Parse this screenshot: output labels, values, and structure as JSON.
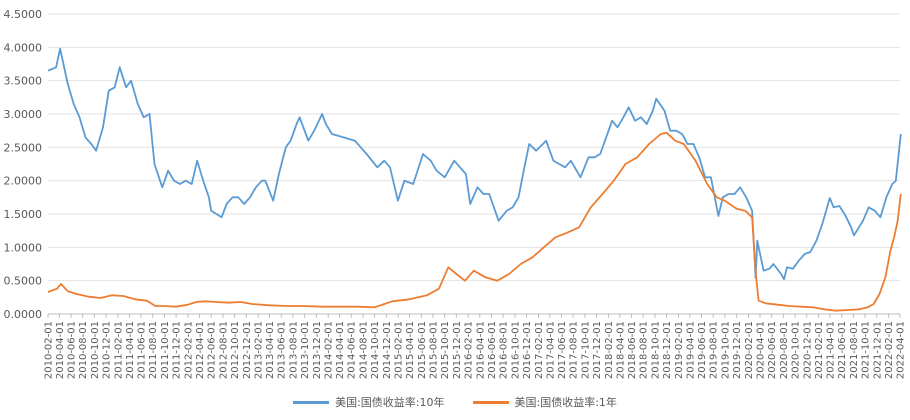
{
  "chart_data": {
    "type": "line",
    "title": "",
    "xlabel": "",
    "ylabel": "",
    "ylim": [
      0,
      4.5
    ],
    "yticks": [
      "0.0000",
      "0.5000",
      "1.0000",
      "1.5000",
      "2.0000",
      "2.5000",
      "3.0000",
      "3.5000",
      "4.0000",
      "4.5000"
    ],
    "xlim": [
      "2010-02-01",
      "2022-04-01"
    ],
    "xticks": [
      "2010-02-01",
      "2010-04-01",
      "2010-06-01",
      "2010-08-01",
      "2010-10-01",
      "2010-12-01",
      "2011-02-01",
      "2011-04-01",
      "2011-06-01",
      "2011-08-01",
      "2011-10-01",
      "2011-12-01",
      "2012-02-01",
      "2012-04-01",
      "2012-06-01",
      "2012-08-01",
      "2012-10-01",
      "2012-12-01",
      "2013-02-01",
      "2013-04-01",
      "2013-06-01",
      "2013-08-01",
      "2013-10-01",
      "2013-12-01",
      "2014-02-01",
      "2014-04-01",
      "2014-06-01",
      "2014-08-01",
      "2014-10-01",
      "2014-12-01",
      "2015-02-01",
      "2015-04-01",
      "2015-06-01",
      "2015-08-01",
      "2015-10-01",
      "2015-12-01",
      "2016-02-01",
      "2016-04-01",
      "2016-06-01",
      "2016-08-01",
      "2016-10-01",
      "2016-12-01",
      "2017-02-01",
      "2017-04-01",
      "2017-06-01",
      "2017-08-01",
      "2017-10-01",
      "2017-12-01",
      "2018-02-01",
      "2018-04-01",
      "2018-06-01",
      "2018-08-01",
      "2018-10-01",
      "2018-12-01",
      "2019-02-01",
      "2019-04-01",
      "2019-06-01",
      "2019-08-01",
      "2019-10-01",
      "2019-12-01",
      "2020-02-01",
      "2020-04-01",
      "2020-06-01",
      "2020-08-01",
      "2020-10-01",
      "2020-12-01",
      "2021-02-01",
      "2021-04-01",
      "2021-06-01",
      "2021-08-01",
      "2021-10-01",
      "2021-12-01",
      "2022-02-01",
      "2022-04-01"
    ],
    "grid": "horizontal",
    "legend_position": "bottom",
    "series": [
      {
        "name": "美国:国债收益率:10年",
        "color": "#5B9BD5",
        "x": [
          "2010-02-01",
          "2010-03-15",
          "2010-04-05",
          "2010-05-15",
          "2010-06-15",
          "2010-07-15",
          "2010-08-15",
          "2010-09-15",
          "2010-10-10",
          "2010-11-15",
          "2010-12-15",
          "2011-01-15",
          "2011-02-10",
          "2011-03-15",
          "2011-04-10",
          "2011-05-15",
          "2011-06-15",
          "2011-07-15",
          "2011-08-10",
          "2011-09-20",
          "2011-10-20",
          "2011-11-20",
          "2011-12-20",
          "2012-01-20",
          "2012-02-20",
          "2012-03-20",
          "2012-04-20",
          "2012-05-20",
          "2012-06-01",
          "2012-07-25",
          "2012-08-20",
          "2012-09-20",
          "2012-10-20",
          "2012-11-20",
          "2012-12-20",
          "2013-01-20",
          "2013-02-20",
          "2013-03-10",
          "2013-04-20",
          "2013-05-20",
          "2013-06-25",
          "2013-07-20",
          "2013-08-20",
          "2013-09-05",
          "2013-10-20",
          "2013-11-20",
          "2013-12-31",
          "2014-01-20",
          "2014-02-20",
          "2014-04-20",
          "2014-06-20",
          "2014-08-20",
          "2014-10-15",
          "2014-11-20",
          "2014-12-20",
          "2015-01-30",
          "2015-03-05",
          "2015-04-20",
          "2015-06-10",
          "2015-07-20",
          "2015-08-20",
          "2015-10-01",
          "2015-11-20",
          "2015-12-20",
          "2016-01-20",
          "2016-02-11",
          "2016-03-20",
          "2016-04-20",
          "2016-05-20",
          "2016-07-08",
          "2016-08-20",
          "2016-09-20",
          "2016-10-20",
          "2016-11-20",
          "2016-12-15",
          "2017-01-20",
          "2017-03-13",
          "2017-04-20",
          "2017-05-20",
          "2017-06-20",
          "2017-07-20",
          "2017-09-08",
          "2017-10-20",
          "2017-11-20",
          "2017-12-20",
          "2018-01-20",
          "2018-02-20",
          "2018-03-20",
          "2018-04-20",
          "2018-05-17",
          "2018-06-20",
          "2018-07-20",
          "2018-08-20",
          "2018-09-20",
          "2018-10-08",
          "2018-11-20",
          "2018-12-20",
          "2019-01-20",
          "2019-02-20",
          "2019-03-20",
          "2019-04-20",
          "2019-05-20",
          "2019-06-20",
          "2019-07-20",
          "2019-08-28",
          "2019-09-20",
          "2019-10-20",
          "2019-11-20",
          "2019-12-20",
          "2020-01-20",
          "2020-02-20",
          "2020-03-09",
          "2020-03-18",
          "2020-04-20",
          "2020-05-20",
          "2020-06-10",
          "2020-07-20",
          "2020-08-04",
          "2020-08-20",
          "2020-09-20",
          "2020-10-20",
          "2020-11-20",
          "2020-12-20",
          "2021-01-20",
          "2021-02-20",
          "2021-03-31",
          "2021-04-20",
          "2021-05-20",
          "2021-06-20",
          "2021-07-20",
          "2021-08-04",
          "2021-09-20",
          "2021-10-20",
          "2021-11-20",
          "2021-12-20",
          "2022-01-20",
          "2022-02-20",
          "2022-03-10",
          "2022-03-25",
          "2022-04-05"
        ],
        "values": [
          3.65,
          3.7,
          3.98,
          3.45,
          3.15,
          2.95,
          2.65,
          2.55,
          2.45,
          2.8,
          3.35,
          3.4,
          3.7,
          3.4,
          3.5,
          3.15,
          2.95,
          3.0,
          2.25,
          1.9,
          2.15,
          2.0,
          1.95,
          2.0,
          1.95,
          2.3,
          2.0,
          1.75,
          1.55,
          1.45,
          1.65,
          1.75,
          1.75,
          1.65,
          1.75,
          1.9,
          2.0,
          2.0,
          1.7,
          2.1,
          2.5,
          2.6,
          2.85,
          2.95,
          2.6,
          2.75,
          3.0,
          2.85,
          2.7,
          2.65,
          2.6,
          2.4,
          2.2,
          2.3,
          2.2,
          1.7,
          2.0,
          1.95,
          2.4,
          2.3,
          2.15,
          2.05,
          2.3,
          2.2,
          2.1,
          1.65,
          1.9,
          1.8,
          1.8,
          1.4,
          1.55,
          1.6,
          1.75,
          2.2,
          2.55,
          2.45,
          2.6,
          2.3,
          2.25,
          2.2,
          2.3,
          2.05,
          2.35,
          2.35,
          2.4,
          2.65,
          2.9,
          2.8,
          2.95,
          3.1,
          2.9,
          2.95,
          2.85,
          3.05,
          3.23,
          3.05,
          2.75,
          2.75,
          2.7,
          2.55,
          2.55,
          2.35,
          2.05,
          2.05,
          1.47,
          1.75,
          1.8,
          1.8,
          1.9,
          1.75,
          1.55,
          0.54,
          1.1,
          0.65,
          0.68,
          0.75,
          0.6,
          0.52,
          0.7,
          0.68,
          0.8,
          0.9,
          0.93,
          1.1,
          1.35,
          1.74,
          1.6,
          1.62,
          1.48,
          1.3,
          1.18,
          1.4,
          1.6,
          1.55,
          1.45,
          1.75,
          1.95,
          2.0,
          2.4,
          2.7
        ]
      },
      {
        "name": "美国:国债收益率:1年",
        "color": "#ED7D31",
        "x": [
          "2010-02-01",
          "2010-03-20",
          "2010-04-10",
          "2010-05-15",
          "2010-07-01",
          "2010-09-01",
          "2010-11-01",
          "2011-01-01",
          "2011-03-01",
          "2011-05-01",
          "2011-07-01",
          "2011-08-15",
          "2011-10-01",
          "2011-12-01",
          "2012-02-01",
          "2012-03-15",
          "2012-05-01",
          "2012-07-01",
          "2012-09-01",
          "2012-11-01",
          "2013-01-01",
          "2013-04-01",
          "2013-07-01",
          "2013-10-01",
          "2014-01-01",
          "2014-04-01",
          "2014-07-01",
          "2014-10-01",
          "2015-01-01",
          "2015-04-01",
          "2015-07-01",
          "2015-09-01",
          "2015-10-20",
          "2015-12-01",
          "2016-01-15",
          "2016-03-01",
          "2016-05-01",
          "2016-07-01",
          "2016-09-01",
          "2016-11-01",
          "2017-01-01",
          "2017-03-01",
          "2017-05-01",
          "2017-07-01",
          "2017-09-01",
          "2017-11-01",
          "2018-01-01",
          "2018-03-01",
          "2018-05-01",
          "2018-07-01",
          "2018-09-01",
          "2018-11-01",
          "2018-12-01",
          "2019-01-15",
          "2019-03-01",
          "2019-05-01",
          "2019-07-01",
          "2019-08-20",
          "2019-10-01",
          "2019-12-01",
          "2020-01-15",
          "2020-02-20",
          "2020-03-10",
          "2020-03-25",
          "2020-05-01",
          "2020-07-01",
          "2020-09-01",
          "2020-11-01",
          "2021-01-01",
          "2021-03-01",
          "2021-05-01",
          "2021-07-01",
          "2021-09-01",
          "2021-10-15",
          "2021-11-15",
          "2021-12-15",
          "2022-01-15",
          "2022-02-10",
          "2022-03-01",
          "2022-03-20",
          "2022-04-05"
        ],
        "values": [
          0.33,
          0.38,
          0.45,
          0.34,
          0.3,
          0.26,
          0.24,
          0.28,
          0.27,
          0.22,
          0.2,
          0.12,
          0.12,
          0.11,
          0.14,
          0.18,
          0.19,
          0.18,
          0.17,
          0.18,
          0.15,
          0.13,
          0.12,
          0.12,
          0.11,
          0.11,
          0.11,
          0.1,
          0.19,
          0.22,
          0.28,
          0.38,
          0.7,
          0.6,
          0.5,
          0.65,
          0.55,
          0.5,
          0.6,
          0.75,
          0.85,
          1.0,
          1.15,
          1.22,
          1.3,
          1.6,
          1.8,
          2.0,
          2.25,
          2.35,
          2.55,
          2.7,
          2.72,
          2.6,
          2.55,
          2.3,
          1.95,
          1.75,
          1.7,
          1.58,
          1.55,
          1.45,
          0.6,
          0.2,
          0.16,
          0.14,
          0.12,
          0.11,
          0.1,
          0.07,
          0.05,
          0.06,
          0.07,
          0.1,
          0.15,
          0.3,
          0.55,
          0.95,
          1.15,
          1.4,
          1.8
        ]
      }
    ]
  }
}
